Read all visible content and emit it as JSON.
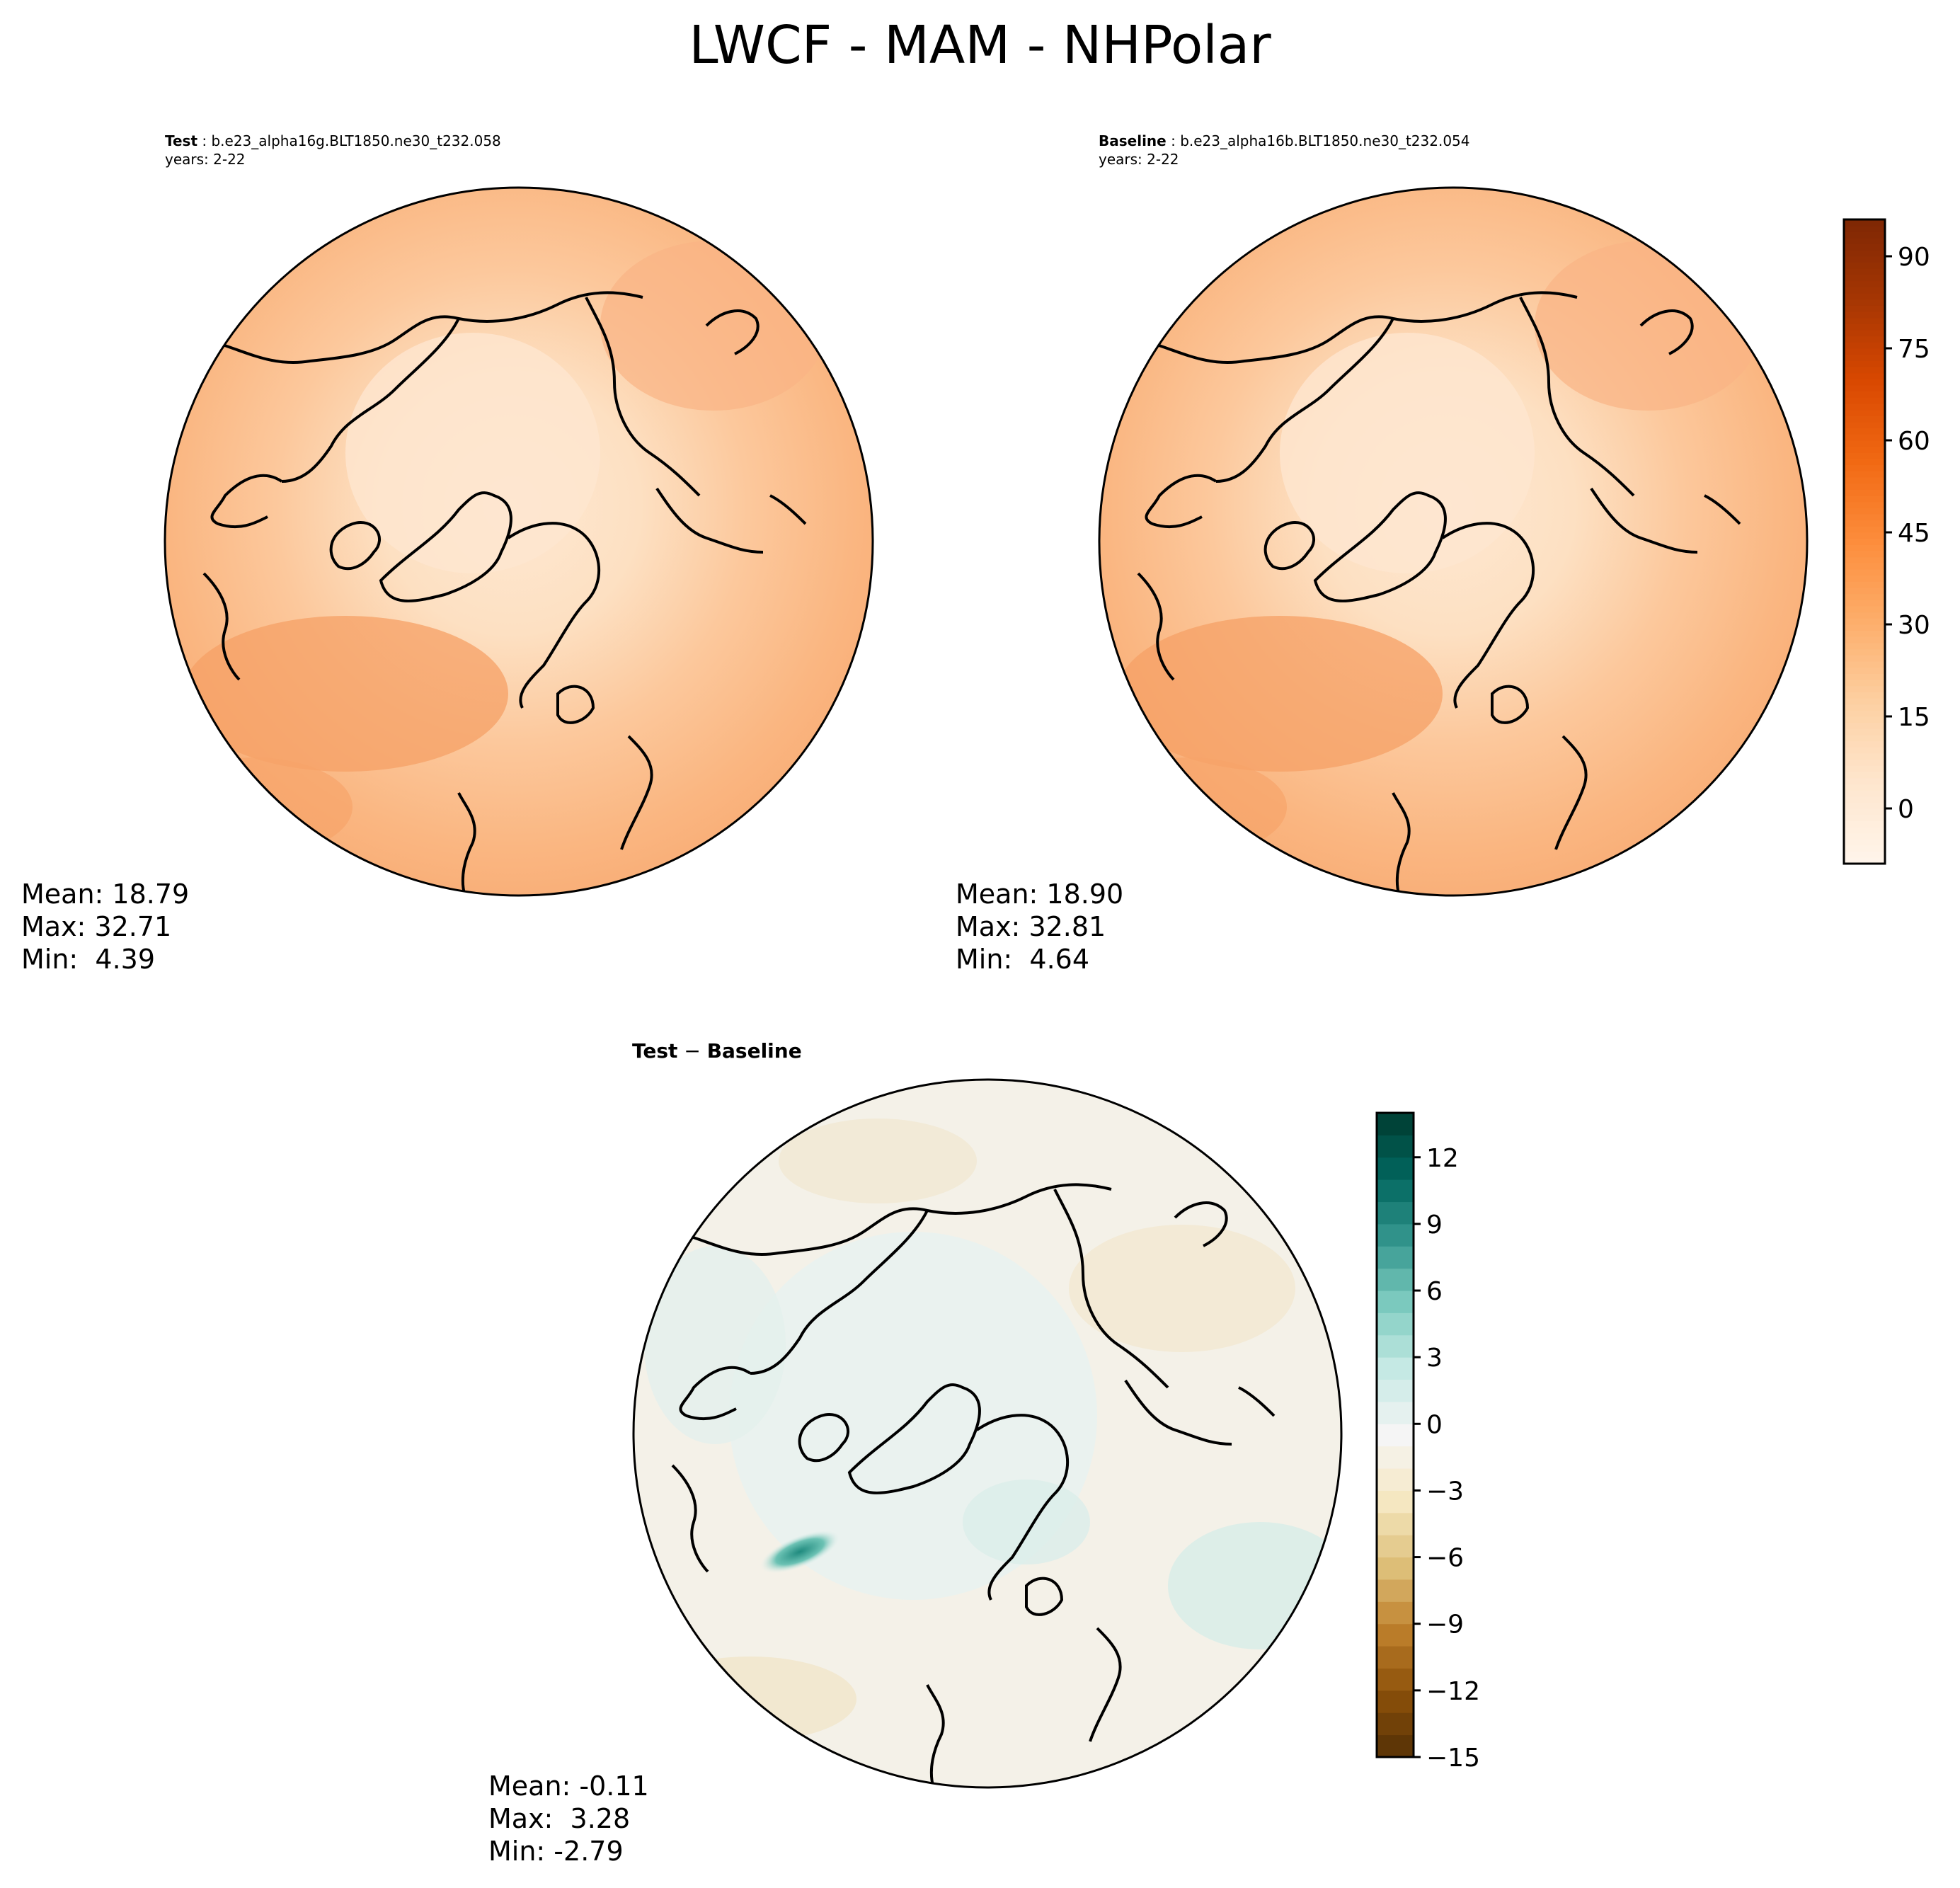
{
  "title": "LWCF - MAM - NHPolar",
  "test": {
    "label": "Test",
    "case": "b.e23_alpha16g.BLT1850.ne30_t232.058",
    "years": "years: 2-22",
    "stats": {
      "mean": "Mean: 18.79",
      "max": "Max: 32.71",
      "min": "Min:  4.39"
    }
  },
  "baseline": {
    "label": "Baseline",
    "case": "b.e23_alpha16b.BLT1850.ne30_t232.054",
    "years": "years: 2-22",
    "stats": {
      "mean": "Mean: 18.90",
      "max": "Max: 32.81",
      "min": "Min:  4.64"
    }
  },
  "difference": {
    "title_test": "Test",
    "title_sep": " − ",
    "title_base": "Baseline",
    "stats": {
      "mean": "Mean: -0.11",
      "max": "Max:  3.28",
      "min": "Min: -2.79"
    }
  },
  "colorbar_main": {
    "ticks": [
      "90",
      "75",
      "60",
      "45",
      "30",
      "15",
      "0"
    ],
    "tick_values": [
      90,
      75,
      60,
      45,
      30,
      15,
      0
    ],
    "range": [
      -9,
      96
    ],
    "colors": [
      "#fff5eb",
      "#fee6ce",
      "#fdd0a2",
      "#fdae6b",
      "#fd8d3c",
      "#f16913",
      "#d94801",
      "#a63603",
      "#7f2704"
    ]
  },
  "colorbar_diff": {
    "ticks": [
      "12",
      "9",
      "6",
      "3",
      "0",
      "−3",
      "−6",
      "−9",
      "−12",
      "−15"
    ],
    "tick_values": [
      12,
      9,
      6,
      3,
      0,
      -3,
      -6,
      -9,
      -12,
      -15
    ],
    "range": [
      -15,
      14
    ],
    "colors": [
      "#543005",
      "#8c510a",
      "#bf812d",
      "#dfc27d",
      "#f6e8c3",
      "#f5f5f5",
      "#c7eae5",
      "#80cdc1",
      "#35978f",
      "#01665e",
      "#003c30"
    ]
  },
  "map_colors": {
    "ocean_outer": "#f9b07a",
    "ring_mid": "#fbc08f",
    "inner": "#fdd6b0",
    "center": "#fee3c8",
    "warm_patch": "#f6a065",
    "diff_base": "#f5f2ea",
    "diff_blue": "#e4f1ee",
    "diff_tan": "#f3ead3",
    "diff_teal": "#2a9488",
    "coast": "#000000"
  }
}
